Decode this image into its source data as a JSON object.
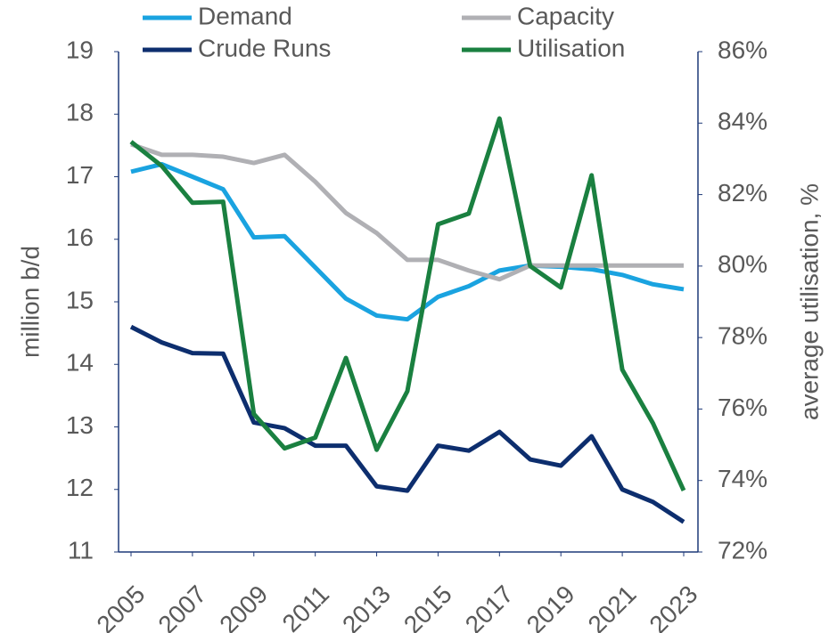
{
  "chart_data": {
    "type": "line",
    "x": [
      2005,
      2006,
      2007,
      2008,
      2009,
      2010,
      2011,
      2012,
      2013,
      2014,
      2015,
      2016,
      2017,
      2018,
      2019,
      2020,
      2021,
      2022,
      2023
    ],
    "xlim": [
      2005,
      2023
    ],
    "xticks": [
      2005,
      2007,
      2009,
      2011,
      2013,
      2015,
      2017,
      2019,
      2021,
      2023
    ],
    "ylabel": "million b/d",
    "ylim": [
      11,
      19
    ],
    "yticks": [
      11,
      12,
      13,
      14,
      15,
      16,
      17,
      18,
      19
    ],
    "y2label": "average utilisation, %",
    "y2lim": [
      72,
      86
    ],
    "y2ticks": [
      {
        "value": 72,
        "label": "72%"
      },
      {
        "value": 74,
        "label": "74%"
      },
      {
        "value": 76,
        "label": "76%"
      },
      {
        "value": 78,
        "label": "78%"
      },
      {
        "value": 80,
        "label": "80%"
      },
      {
        "value": 82,
        "label": "82%"
      },
      {
        "value": 84,
        "label": "84%"
      },
      {
        "value": 86,
        "label": "86%"
      }
    ],
    "grid": false,
    "series": [
      {
        "name": "Demand",
        "color": "#1aa3e0",
        "values": [
          17.08,
          17.2,
          17.0,
          16.8,
          16.03,
          16.05,
          15.55,
          15.05,
          14.78,
          14.72,
          15.08,
          15.25,
          15.5,
          15.58,
          15.56,
          15.52,
          15.43,
          15.28,
          15.2
        ]
      },
      {
        "name": "Capacity",
        "color": "#b0b0b4",
        "values": [
          17.52,
          17.35,
          17.35,
          17.32,
          17.22,
          17.35,
          16.92,
          16.42,
          16.1,
          15.67,
          15.67,
          15.5,
          15.36,
          15.58,
          15.58,
          15.58,
          15.58,
          15.58,
          15.58
        ]
      },
      {
        "name": "Crude Runs",
        "color": "#0d2e6e",
        "values": [
          14.6,
          14.35,
          14.18,
          14.17,
          13.07,
          12.98,
          12.7,
          12.7,
          12.05,
          11.98,
          12.7,
          12.62,
          12.92,
          12.48,
          12.38,
          12.85,
          12.0,
          11.8,
          11.48
        ]
      },
      {
        "name": "Utilisation",
        "color": "#1a8040",
        "axis": "y2",
        "values": [
          83.48,
          82.8,
          81.77,
          81.8,
          75.86,
          74.9,
          75.2,
          77.43,
          74.86,
          76.5,
          81.17,
          81.47,
          84.13,
          80.0,
          79.4,
          82.54,
          77.1,
          75.6,
          73.72
        ]
      }
    ]
  }
}
